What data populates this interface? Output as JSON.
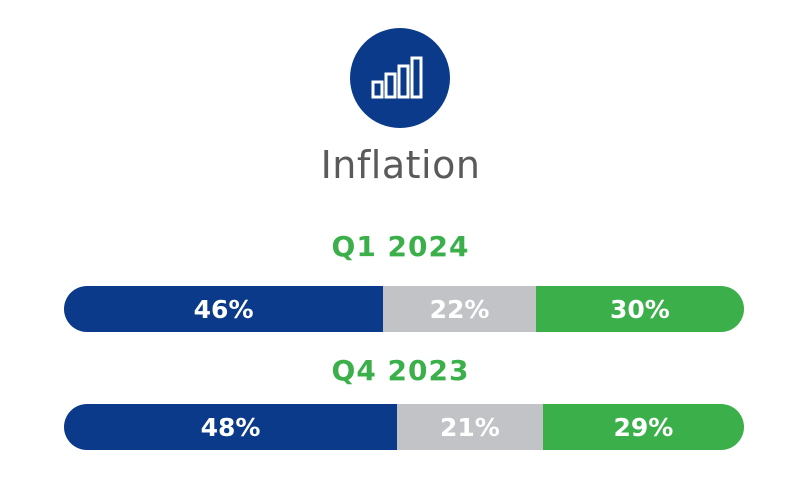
{
  "title": "Inflation",
  "icon": "bar-chart-icon",
  "colors": {
    "accent": "#0b3a8a",
    "label": "#3bb04a",
    "title": "#5a5a5a"
  },
  "chart_data": {
    "type": "bar",
    "orientation": "horizontal-stacked",
    "categories": [
      "Q1 2024",
      "Q4 2023"
    ],
    "series": [
      {
        "values": [
          46,
          48
        ],
        "labels": [
          "46%",
          "48%"
        ],
        "color": "#0b3a8a"
      },
      {
        "values": [
          22,
          21
        ],
        "labels": [
          "22%",
          "21%"
        ],
        "color": "#c2c3c7"
      },
      {
        "values": [
          30,
          29
        ],
        "labels": [
          "30%",
          "29%"
        ],
        "color": "#3bb04a"
      }
    ],
    "title": "Inflation",
    "xlabel": "",
    "ylabel": "",
    "grid": false,
    "legend": false
  }
}
